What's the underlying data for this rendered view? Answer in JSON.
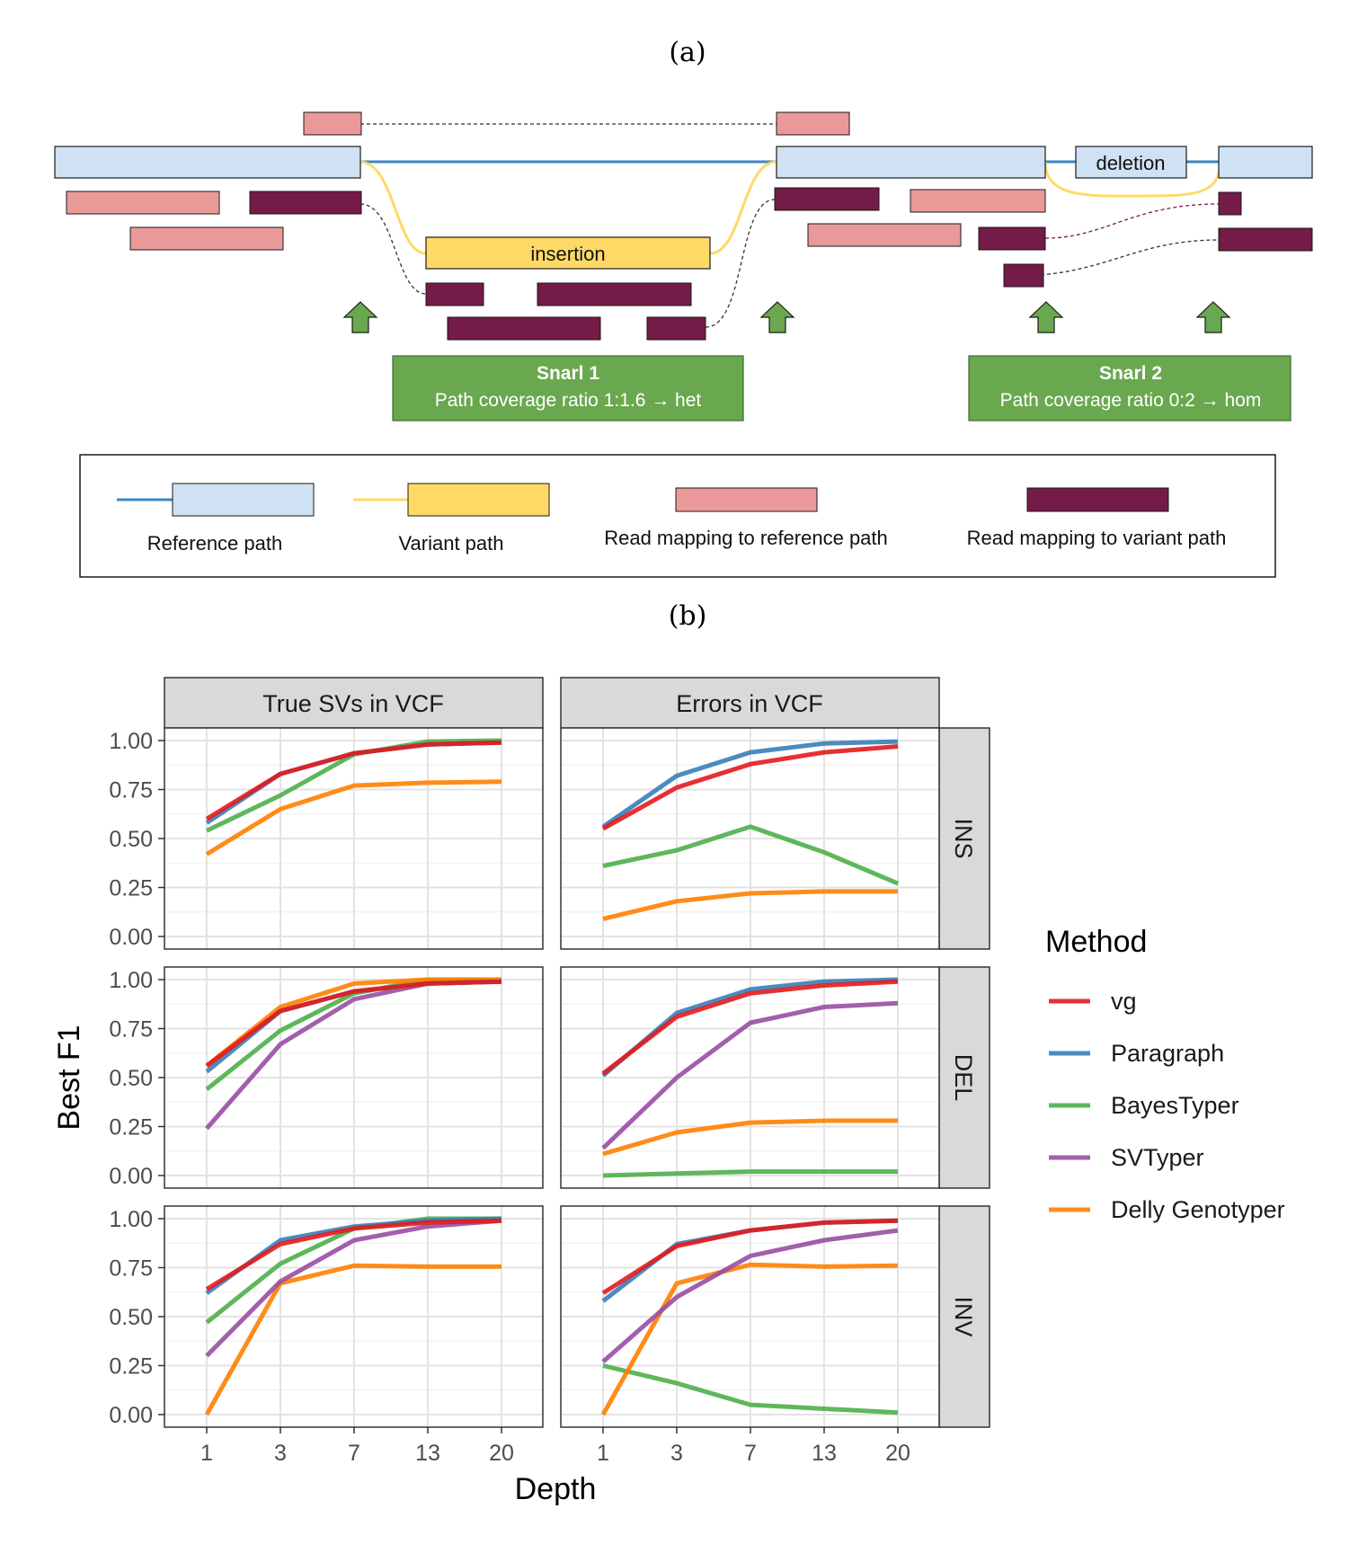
{
  "panel_a": {
    "label": "(a)",
    "insertion_label": "insertion",
    "deletion_label": "deletion",
    "snarl1": {
      "title": "Snarl 1",
      "text": "Path coverage ratio 1:1.6 → het"
    },
    "snarl2": {
      "title": "Snarl 2",
      "text": "Path coverage ratio 0:2 → hom"
    },
    "legend": {
      "reference_path": "Reference path",
      "variant_path": "Variant path",
      "read_ref": "Read mapping to reference path",
      "read_var": "Read mapping to variant path"
    },
    "colors": {
      "ref_node": "#cfe2f3",
      "ref_line": "#3d85c6",
      "variant": "#ffd966",
      "variant_line": "#ffd966",
      "read_ref": "#ea9999",
      "read_var": "#741b47",
      "arrow": "#6aa84f",
      "snarl_box": "#6aa84f"
    }
  },
  "panel_b": {
    "label": "(b)",
    "chart_data": {
      "type": "line",
      "x": [
        1,
        3,
        7,
        13,
        20
      ],
      "x_ticks": [
        "1",
        "3",
        "7",
        "13",
        "20"
      ],
      "xlabel": "Depth",
      "ylabel": "Best F1",
      "ylim": [
        0,
        1
      ],
      "y_ticks": [
        "0.00",
        "0.25",
        "0.50",
        "0.75",
        "1.00"
      ],
      "facet_columns": [
        "True SVs in VCF",
        "Errors in VCF"
      ],
      "facet_rows": [
        "INS",
        "DEL",
        "INV"
      ],
      "legend_title": "Method",
      "legend_position": "right",
      "grid": true,
      "methods": [
        {
          "name": "vg",
          "color": "#e41a1c"
        },
        {
          "name": "Paragraph",
          "color": "#377eb8"
        },
        {
          "name": "BayesTyper",
          "color": "#4daf4a"
        },
        {
          "name": "SVTyper",
          "color": "#984ea3"
        },
        {
          "name": "Delly Genotyper",
          "color": "#ff7f00"
        }
      ],
      "panels": [
        {
          "row": "INS",
          "col": "True SVs in VCF",
          "series": [
            {
              "name": "Delly Genotyper",
              "values": [
                0.42,
                0.65,
                0.77,
                0.785,
                0.79
              ]
            },
            {
              "name": "BayesTyper",
              "values": [
                0.54,
                0.72,
                0.93,
                0.995,
                1.0
              ]
            },
            {
              "name": "Paragraph",
              "values": [
                0.58,
                0.83,
                0.935,
                0.98,
                0.99
              ]
            },
            {
              "name": "vg",
              "values": [
                0.6,
                0.83,
                0.935,
                0.98,
                0.99
              ]
            }
          ]
        },
        {
          "row": "INS",
          "col": "Errors in VCF",
          "series": [
            {
              "name": "Delly Genotyper",
              "values": [
                0.09,
                0.18,
                0.22,
                0.23,
                0.23
              ]
            },
            {
              "name": "BayesTyper",
              "values": [
                0.36,
                0.44,
                0.56,
                0.43,
                0.27
              ]
            },
            {
              "name": "Paragraph",
              "values": [
                0.56,
                0.82,
                0.94,
                0.985,
                0.995
              ]
            },
            {
              "name": "vg",
              "values": [
                0.55,
                0.76,
                0.88,
                0.94,
                0.97
              ]
            }
          ]
        },
        {
          "row": "DEL",
          "col": "True SVs in VCF",
          "series": [
            {
              "name": "SVTyper",
              "values": [
                0.24,
                0.67,
                0.9,
                0.98,
                0.99
              ]
            },
            {
              "name": "BayesTyper",
              "values": [
                0.44,
                0.74,
                0.93,
                1.0,
                1.0
              ]
            },
            {
              "name": "Delly Genotyper",
              "values": [
                0.56,
                0.86,
                0.98,
                1.0,
                1.0
              ]
            },
            {
              "name": "Paragraph",
              "values": [
                0.53,
                0.84,
                0.94,
                0.98,
                0.99
              ]
            },
            {
              "name": "vg",
              "values": [
                0.56,
                0.84,
                0.94,
                0.98,
                0.99
              ]
            }
          ]
        },
        {
          "row": "DEL",
          "col": "Errors in VCF",
          "series": [
            {
              "name": "BayesTyper",
              "values": [
                0.0,
                0.01,
                0.02,
                0.02,
                0.02
              ]
            },
            {
              "name": "Delly Genotyper",
              "values": [
                0.11,
                0.22,
                0.27,
                0.28,
                0.28
              ]
            },
            {
              "name": "SVTyper",
              "values": [
                0.14,
                0.5,
                0.78,
                0.86,
                0.88
              ]
            },
            {
              "name": "Paragraph",
              "values": [
                0.51,
                0.83,
                0.95,
                0.99,
                1.0
              ]
            },
            {
              "name": "vg",
              "values": [
                0.52,
                0.81,
                0.93,
                0.97,
                0.99
              ]
            }
          ]
        },
        {
          "row": "INV",
          "col": "True SVs in VCF",
          "series": [
            {
              "name": "Delly Genotyper",
              "values": [
                0.0,
                0.67,
                0.76,
                0.755,
                0.755
              ]
            },
            {
              "name": "SVTyper",
              "values": [
                0.3,
                0.68,
                0.89,
                0.96,
                0.99
              ]
            },
            {
              "name": "BayesTyper",
              "values": [
                0.47,
                0.77,
                0.95,
                1.0,
                1.0
              ]
            },
            {
              "name": "Paragraph",
              "values": [
                0.62,
                0.89,
                0.96,
                0.99,
                1.0
              ]
            },
            {
              "name": "vg",
              "values": [
                0.64,
                0.87,
                0.95,
                0.98,
                0.99
              ]
            }
          ]
        },
        {
          "row": "INV",
          "col": "Errors in VCF",
          "series": [
            {
              "name": "BayesTyper",
              "values": [
                0.25,
                0.16,
                0.05,
                0.03,
                0.01
              ]
            },
            {
              "name": "Delly Genotyper",
              "values": [
                0.0,
                0.67,
                0.765,
                0.755,
                0.76
              ]
            },
            {
              "name": "SVTyper",
              "values": [
                0.27,
                0.6,
                0.81,
                0.89,
                0.94
              ]
            },
            {
              "name": "Paragraph",
              "values": [
                0.58,
                0.87,
                0.94,
                0.98,
                0.99
              ]
            },
            {
              "name": "vg",
              "values": [
                0.62,
                0.86,
                0.94,
                0.98,
                0.99
              ]
            }
          ]
        }
      ]
    }
  }
}
